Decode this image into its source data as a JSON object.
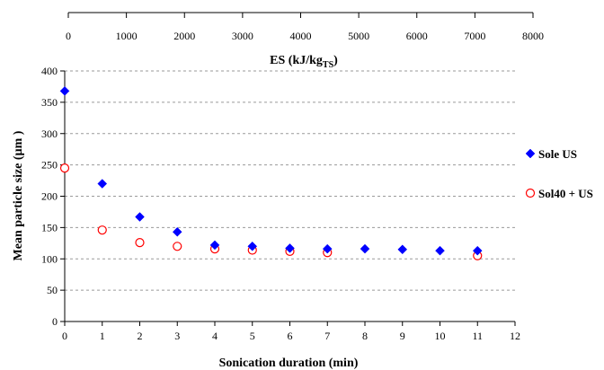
{
  "chart_data": {
    "type": "scatter",
    "xlabel": "Sonication duration (min)",
    "ylabel": "Mean particle size (µm )",
    "top_axis": {
      "label_main": "ES (kJ/kg",
      "label_sub": "TS",
      "label_close": ")",
      "range": [
        0,
        8000
      ],
      "ticks": [
        0,
        1000,
        2000,
        3000,
        4000,
        5000,
        6000,
        7000,
        8000
      ]
    },
    "xlim": [
      0,
      12
    ],
    "ylim": [
      0,
      400
    ],
    "xticks": [
      0,
      1,
      2,
      3,
      4,
      5,
      6,
      7,
      8,
      9,
      10,
      11,
      12
    ],
    "yticks": [
      0,
      50,
      100,
      150,
      200,
      250,
      300,
      350,
      400
    ],
    "grid": "horizontal dashed",
    "legend": "right",
    "series": [
      {
        "name": "Sole US",
        "marker": "diamond-filled",
        "color": "#0000ff",
        "x": [
          0,
          1,
          2,
          3,
          4,
          5,
          6,
          7,
          8,
          9,
          10,
          11
        ],
        "y": [
          368,
          220,
          167,
          143,
          122,
          120,
          117,
          116,
          116,
          115,
          113,
          113
        ]
      },
      {
        "name": "Sol40 + US",
        "marker": "circle-open",
        "color": "#ff0000",
        "x": [
          0,
          1,
          2,
          3,
          4,
          5,
          6,
          7,
          11
        ],
        "y": [
          245,
          146,
          126,
          120,
          116,
          114,
          112,
          110,
          105
        ]
      }
    ]
  }
}
